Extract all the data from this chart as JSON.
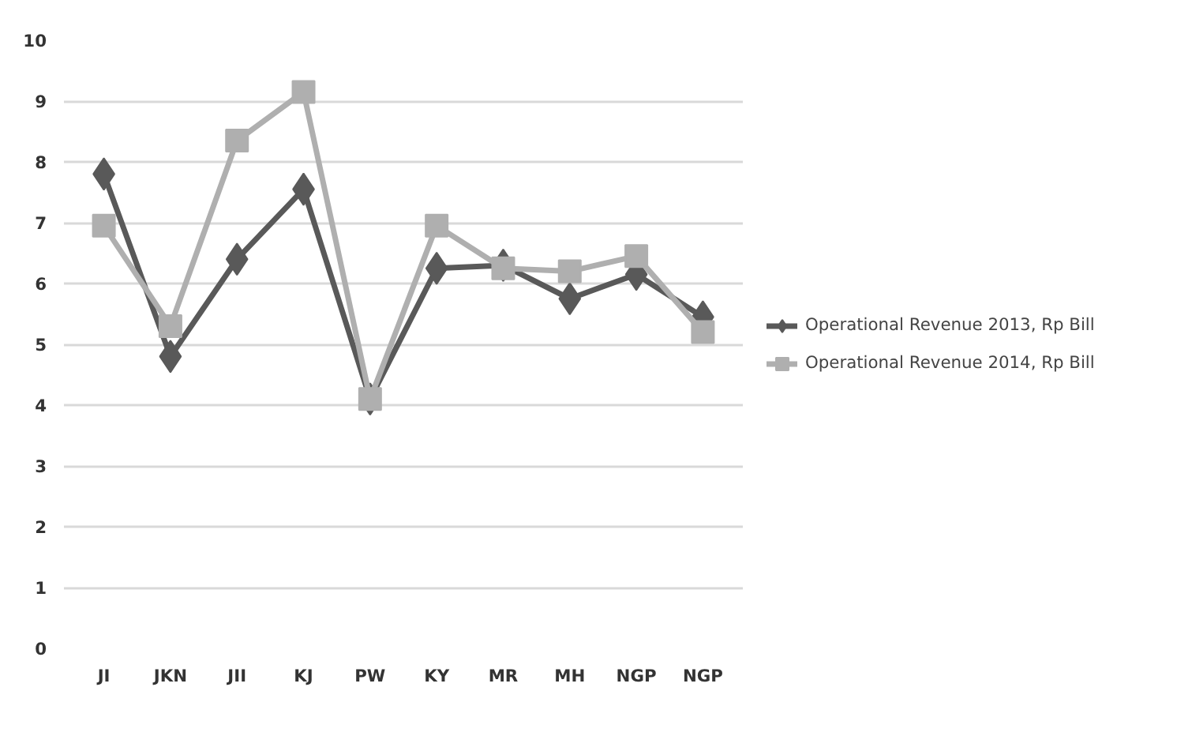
{
  "chart_data": {
    "type": "line",
    "categories": [
      "JI",
      "JKN",
      "JII",
      "KJ",
      "PW",
      "KY",
      "MR",
      "MH",
      "NGP",
      "NGP"
    ],
    "series": [
      {
        "name": "Operational Revenue 2013, Rp Bill",
        "color": "#595959",
        "marker": "diamond",
        "values": [
          7.8,
          4.8,
          6.4,
          7.55,
          4.1,
          6.25,
          6.3,
          5.75,
          6.15,
          5.45
        ]
      },
      {
        "name": "Operational Revenue 2014, Rp Bill",
        "color": "#afafaf",
        "marker": "square",
        "values": [
          6.95,
          5.3,
          8.35,
          9.15,
          4.1,
          6.95,
          6.25,
          6.2,
          6.45,
          5.2
        ]
      }
    ],
    "ylim": [
      0,
      10
    ],
    "yticks": [
      0,
      1,
      2,
      3,
      4,
      5,
      6,
      7,
      8,
      9,
      10
    ],
    "grid": "y",
    "legend": "right",
    "line_style": "solid"
  }
}
